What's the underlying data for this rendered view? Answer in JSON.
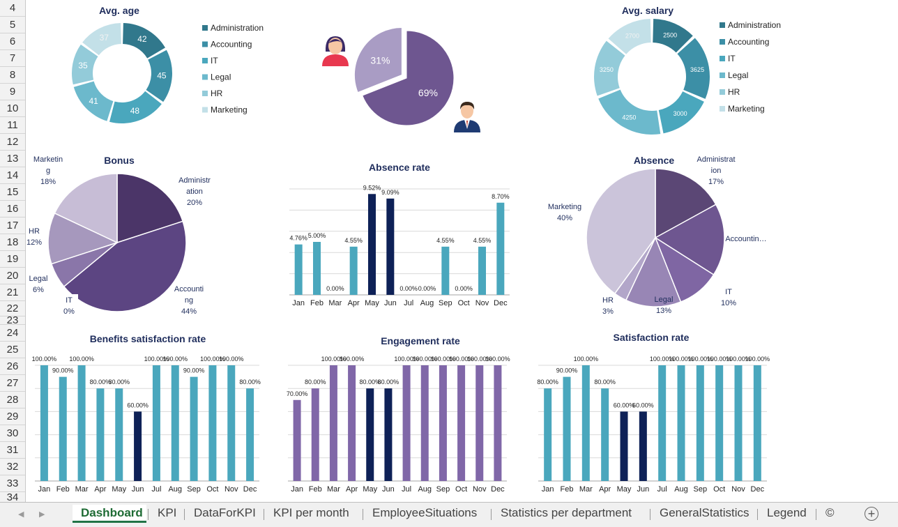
{
  "row_headers": [
    "4",
    "5",
    "6",
    "7",
    "8",
    "9",
    "10",
    "11",
    "12",
    "13",
    "14",
    "15",
    "16",
    "17",
    "18",
    "19",
    "20",
    "21",
    "22",
    "23",
    "24",
    "25",
    "26",
    "27",
    "28",
    "29",
    "30",
    "31",
    "32",
    "33",
    "34"
  ],
  "sheet_tabs": [
    {
      "label": "Dashboard",
      "active": true
    },
    {
      "label": "KPI",
      "active": false
    },
    {
      "label": "DataForKPI",
      "active": false
    },
    {
      "label": "KPI per month",
      "active": false
    },
    {
      "label": "EmployeeSituations",
      "active": false
    },
    {
      "label": "Statistics per department",
      "active": false
    },
    {
      "label": "GeneralStatistics",
      "active": false
    },
    {
      "label": "Legend",
      "active": false
    },
    {
      "label": "©",
      "active": false
    }
  ],
  "add_sheet_label": "+",
  "chart_data": [
    {
      "id": "avg-age",
      "type": "pie",
      "style": "donut",
      "title": "Avg. age",
      "categories": [
        "Administration",
        "Accounting",
        "IT",
        "Legal",
        "HR",
        "Marketing"
      ],
      "values": [
        42,
        45,
        48,
        41,
        35,
        37
      ],
      "colors": [
        "#31788c",
        "#3c8fa6",
        "#4aa7bd",
        "#6cb9cc",
        "#93cbd9",
        "#c3e0e8"
      ],
      "legend": "right"
    },
    {
      "id": "gender",
      "type": "pie",
      "categories": [
        "Women",
        "Men"
      ],
      "values": [
        31,
        69
      ],
      "labels": [
        "31%",
        "69%"
      ],
      "colors": [
        "#a99cc4",
        "#6e5690"
      ]
    },
    {
      "id": "avg-salary",
      "type": "pie",
      "style": "donut",
      "title": "Avg. salary",
      "categories": [
        "Administration",
        "Accounting",
        "IT",
        "Legal",
        "HR",
        "Marketing"
      ],
      "values": [
        2500,
        3625,
        3000,
        4250,
        3250,
        2700
      ],
      "colors": [
        "#31788c",
        "#3c8fa6",
        "#4aa7bd",
        "#6cb9cc",
        "#93cbd9",
        "#c3e0e8"
      ],
      "legend": "right"
    },
    {
      "id": "bonus",
      "type": "pie",
      "title": "Bonus",
      "categories": [
        "Administration",
        "Accounting",
        "IT",
        "Legal",
        "HR",
        "Marketing"
      ],
      "values": [
        20,
        44,
        0,
        6,
        12,
        18
      ],
      "labels": [
        "Administr\nation\n20%",
        "Accounti\nng\n44%",
        "IT\n0%",
        "Legal\n6%",
        "HR\n12%",
        "Marketin\ng\n18%"
      ],
      "colors": [
        "#4b3568",
        "#5c4582",
        "#6e5690",
        "#8a76a9",
        "#a698bd",
        "#c7bdd6"
      ]
    },
    {
      "id": "absence-rate",
      "type": "bar",
      "title": "Absence rate",
      "categories": [
        "Jan",
        "Feb",
        "Mar",
        "Apr",
        "May",
        "Jun",
        "Jul",
        "Aug",
        "Sep",
        "Oct",
        "Nov",
        "Dec"
      ],
      "values": [
        4.76,
        5.0,
        0,
        4.55,
        9.52,
        9.09,
        0,
        0,
        4.55,
        0,
        4.55,
        8.7
      ],
      "data_labels": [
        "4.76%",
        "5.00%",
        "0.00%",
        "4.55%",
        "9.52%",
        "9.09%",
        "0.00%",
        "0.00%",
        "4.55%",
        "0.00%",
        "4.55%",
        "8.70%"
      ],
      "highlight": [
        4,
        5
      ],
      "ylim": [
        0,
        10
      ],
      "grid": true
    },
    {
      "id": "absence",
      "type": "pie",
      "title": "Absence",
      "categories": [
        "Administration",
        "Accounting",
        "IT",
        "Legal",
        "HR",
        "Marketing"
      ],
      "values": [
        17,
        17,
        10,
        13,
        3,
        40
      ],
      "labels": [
        "Administrat\nion\n17%",
        "Accountin…",
        "IT\n10%",
        "Legal\n13%",
        "HR\n3%",
        "Marketing\n40%"
      ],
      "colors": [
        "#5b4775",
        "#6e5690",
        "#7f66a3",
        "#9886b5",
        "#b2a6c9",
        "#cbc4da"
      ]
    },
    {
      "id": "benefits-satisfaction",
      "type": "bar",
      "title": "Benefits satisfaction rate",
      "categories": [
        "Jan",
        "Feb",
        "Mar",
        "Apr",
        "May",
        "Jun",
        "Jul",
        "Aug",
        "Sep",
        "Oct",
        "Nov",
        "Dec"
      ],
      "values": [
        100,
        90,
        100,
        80,
        80,
        60,
        100,
        100,
        90,
        100,
        100,
        80
      ],
      "data_labels": [
        "100.00%",
        "90.00%",
        "100.00%",
        "80.00%",
        "80.00%",
        "60.00%",
        "100.00%",
        "100.00%",
        "90.00%",
        "100.00%",
        "100.00%",
        "80.00%"
      ],
      "highlight": [
        5
      ],
      "ylim": [
        0,
        100
      ],
      "grid": true
    },
    {
      "id": "engagement",
      "type": "bar",
      "title": "Engagement rate",
      "categories": [
        "Jan",
        "Feb",
        "Mar",
        "Apr",
        "May",
        "Jun",
        "Jul",
        "Aug",
        "Sep",
        "Oct",
        "Nov",
        "Dec"
      ],
      "values": [
        70,
        80,
        100,
        100,
        80,
        80,
        100,
        100,
        100,
        100,
        100,
        100
      ],
      "data_labels": [
        "70.00%",
        "80.00%",
        "100.00%",
        "100.00%",
        "80.00%",
        "80.00%",
        "100.00%",
        "100.00%",
        "100.00%",
        "100.00%",
        "100.00%",
        "100.00%"
      ],
      "highlight": [
        4,
        5
      ],
      "ylim": [
        0,
        100
      ],
      "grid": true
    },
    {
      "id": "satisfaction",
      "type": "bar",
      "title": "Satisfaction rate",
      "categories": [
        "Jan",
        "Feb",
        "Mar",
        "Apr",
        "May",
        "Jun",
        "Jul",
        "Aug",
        "Sep",
        "Oct",
        "Nov",
        "Dec"
      ],
      "values": [
        80,
        90,
        100,
        80,
        60,
        60,
        100,
        100,
        100,
        100,
        100,
        100
      ],
      "data_labels": [
        "80.00%",
        "90.00%",
        "100.00%",
        "80.00%",
        "60.00%",
        "60.00%",
        "100.00%",
        "100.00%",
        "100.00%",
        "100.00%",
        "100.00%",
        "100.00%"
      ],
      "highlight": [
        4,
        5
      ],
      "ylim": [
        0,
        100
      ],
      "grid": true
    }
  ],
  "colors": {
    "teal": "#4aa7bd",
    "navy": "#0e2157",
    "purple": "#8067a8",
    "title": "#1f2d5c"
  },
  "icons": {
    "women": "woman-avatar-icon",
    "men": "man-avatar-icon"
  }
}
